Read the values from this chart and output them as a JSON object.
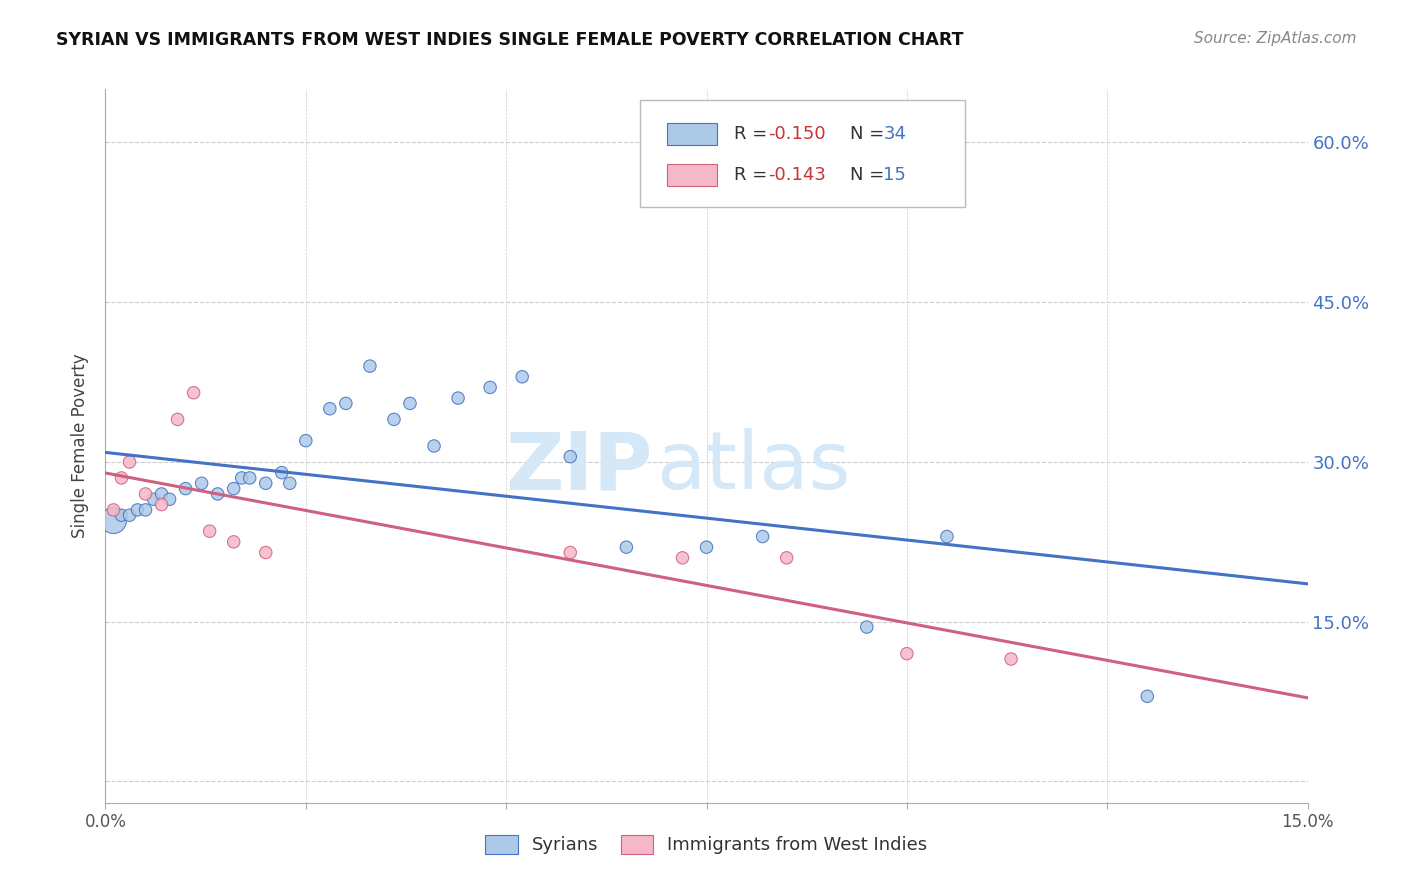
{
  "title": "SYRIAN VS IMMIGRANTS FROM WEST INDIES SINGLE FEMALE POVERTY CORRELATION CHART",
  "source": "Source: ZipAtlas.com",
  "ylabel": "Single Female Poverty",
  "x_range": [
    0.0,
    0.15
  ],
  "y_range": [
    -0.02,
    0.65
  ],
  "y_ticks": [
    0.0,
    0.15,
    0.3,
    0.45,
    0.6
  ],
  "y_tick_labels": [
    "",
    "15.0%",
    "30.0%",
    "45.0%",
    "60.0%"
  ],
  "x_ticks": [
    0.0,
    0.025,
    0.05,
    0.075,
    0.1,
    0.125,
    0.15
  ],
  "x_tick_labels": [
    "0.0%",
    "",
    "",
    "",
    "",
    "",
    "15.0%"
  ],
  "syrians_x": [
    0.001,
    0.002,
    0.003,
    0.004,
    0.005,
    0.006,
    0.007,
    0.008,
    0.01,
    0.012,
    0.014,
    0.016,
    0.017,
    0.018,
    0.02,
    0.022,
    0.023,
    0.025,
    0.028,
    0.03,
    0.033,
    0.036,
    0.038,
    0.041,
    0.044,
    0.048,
    0.052,
    0.058,
    0.065,
    0.075,
    0.082,
    0.095,
    0.105,
    0.13
  ],
  "syrians_y": [
    0.245,
    0.25,
    0.25,
    0.255,
    0.255,
    0.265,
    0.27,
    0.265,
    0.275,
    0.28,
    0.27,
    0.275,
    0.285,
    0.285,
    0.28,
    0.29,
    0.28,
    0.32,
    0.35,
    0.355,
    0.39,
    0.34,
    0.355,
    0.315,
    0.36,
    0.37,
    0.38,
    0.305,
    0.22,
    0.22,
    0.23,
    0.145,
    0.23,
    0.08
  ],
  "syrians_sizes_big": [
    1
  ],
  "syrians_big_idx": 0,
  "westindies_x": [
    0.001,
    0.002,
    0.003,
    0.005,
    0.007,
    0.009,
    0.011,
    0.013,
    0.016,
    0.02,
    0.058,
    0.072,
    0.085,
    0.1,
    0.113
  ],
  "westindies_y": [
    0.255,
    0.285,
    0.3,
    0.27,
    0.26,
    0.34,
    0.365,
    0.235,
    0.225,
    0.215,
    0.215,
    0.21,
    0.21,
    0.12,
    0.115
  ],
  "syrian_fill": "#adc9e8",
  "syrian_edge": "#4472c4",
  "wi_fill": "#f5b8c8",
  "wi_edge": "#d06080",
  "syrian_line": "#4472c4",
  "wi_line": "#d06080",
  "r_color": "#cc3333",
  "n_color": "#4472c4",
  "grid_color": "#cccccc",
  "bg_color": "#ffffff",
  "wm_color": "#d4e8f8",
  "title_color": "#111111",
  "source_color": "#888888",
  "ytick_color": "#4472c4",
  "xtick_color": "#555555"
}
